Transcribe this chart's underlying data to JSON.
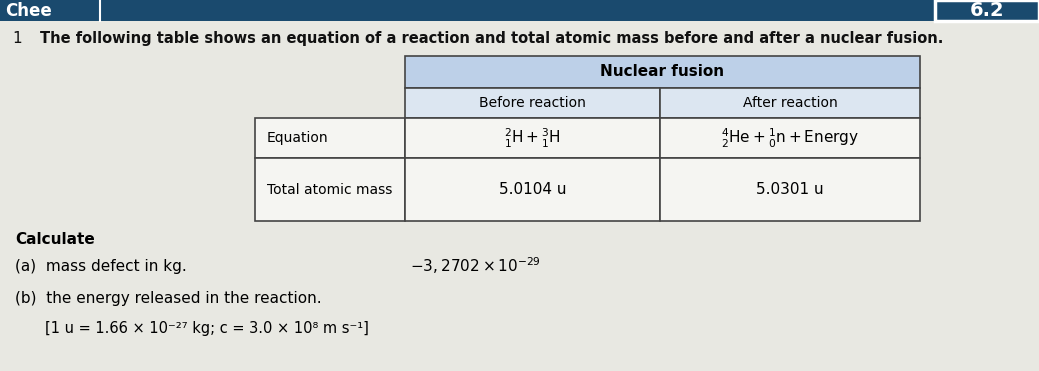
{
  "section_number": "6.2",
  "question_number": "1",
  "intro_text": "The following table shows an equation of a reaction and total atomic mass before and after a nuclear fusion.",
  "table_header": "Nuclear fusion",
  "col_before": "Before reaction",
  "col_after": "After reaction",
  "row1_label": "Equation",
  "row1_before": "$^{2}_{1}\\mathrm{H} + ^{3}_{1}\\mathrm{H}$",
  "row1_after": "$^{4}_{2}\\mathrm{He} + ^{1}_{0}\\mathrm{n} + \\mathrm{Energy}$",
  "row2_label": "Total atomic mass",
  "row2_before": "5.0104 u",
  "row2_after": "5.0301 u",
  "calculate_text": "Calculate",
  "item_a": "(a)  mass defect in kg.",
  "item_b": "(b)  the energy released in the reaction.",
  "constants": "[1 u = 1.66 × 10⁻²⁷ kg; c = 3.0 × 10⁸ m s⁻¹]",
  "annotation": "$-3, 2702 \\times 10^{-29}$",
  "header_bg": "#bdd0e8",
  "table_bg": "#dce6f1",
  "top_bar_color": "#1a4a6e",
  "bg_color": "#c8c8c0",
  "page_color": "#e8e8e2",
  "white": "#f5f5f2",
  "border_color": "#444444",
  "text_color": "#111111"
}
